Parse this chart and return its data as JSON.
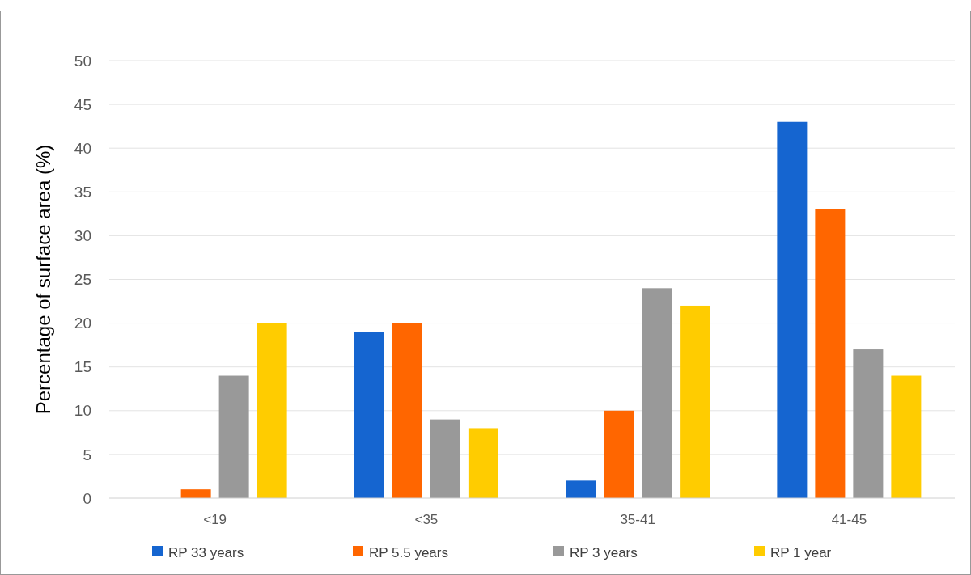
{
  "chart_data": {
    "type": "bar",
    "ylabel": "Percentage of surface area (%)",
    "categories": [
      "<19",
      "<35",
      "35-41",
      "41-45"
    ],
    "series": [
      {
        "name": "RP 33 years",
        "color": "#1565d0",
        "values": [
          0,
          19,
          2,
          43
        ]
      },
      {
        "name": "RP 5.5 years",
        "color": "#ff6600",
        "values": [
          1,
          20,
          10,
          33
        ]
      },
      {
        "name": "RP 3 years",
        "color": "#999999",
        "values": [
          14,
          9,
          24,
          17
        ]
      },
      {
        "name": "RP 1 year",
        "color": "#ffcc00",
        "values": [
          20,
          8,
          22,
          14
        ]
      }
    ],
    "ylim": [
      0,
      50
    ],
    "yticks": [
      0,
      5,
      10,
      15,
      20,
      25,
      30,
      35,
      40,
      45,
      50
    ],
    "grid": "y",
    "legend": "bottom"
  }
}
